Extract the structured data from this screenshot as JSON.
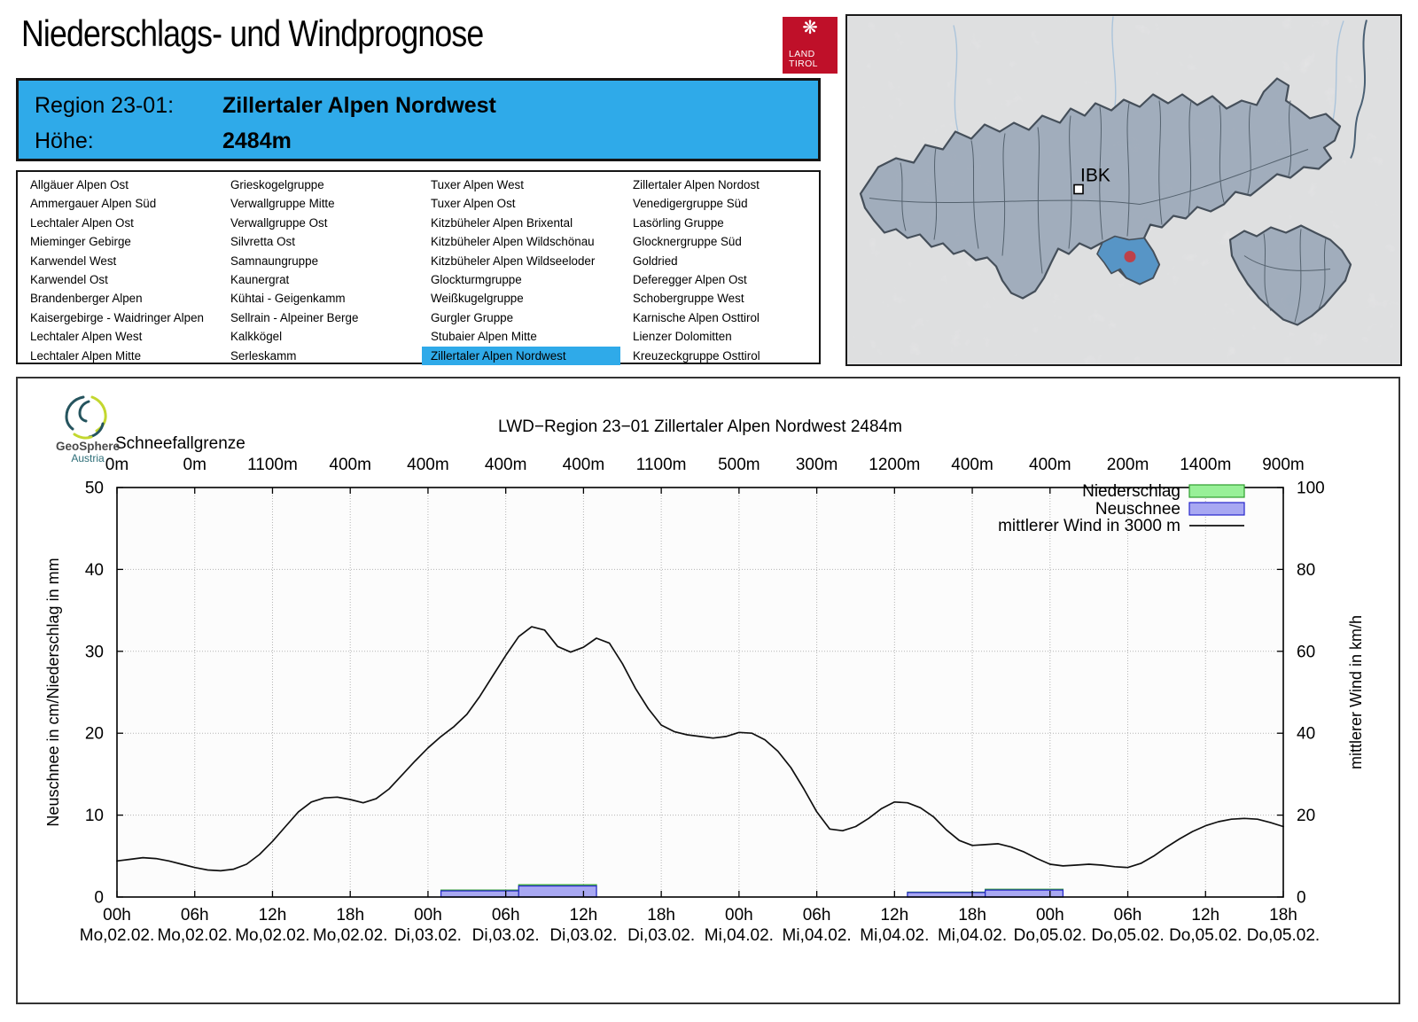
{
  "header": {
    "title": "Niederschlags- und Windprognose",
    "logo": {
      "eagle_glyph": "❋",
      "line1": "LAND",
      "line2": "TIROL"
    }
  },
  "region_info": {
    "region_label": "Region 23-01:",
    "region_name": "Zillertaler Alpen Nordwest",
    "hoehe_label": "Höhe:",
    "hoehe_value": "2484m"
  },
  "region_list": {
    "selected": "Zillertaler Alpen Nordwest",
    "columns": [
      [
        "Allgäuer Alpen Ost",
        "Ammergauer Alpen Süd",
        "Lechtaler Alpen Ost",
        "Mieminger Gebirge",
        "Karwendel West",
        "Karwendel Ost",
        "Brandenberger Alpen",
        "Kaisergebirge - Waidringer Alpen",
        "Lechtaler Alpen West",
        "Lechtaler Alpen Mitte"
      ],
      [
        "Grieskogelgruppe",
        "Verwallgruppe Mitte",
        "Verwallgruppe Ost",
        "Silvretta Ost",
        "Samnaungruppe",
        "Kaunergrat",
        "Kühtai - Geigenkamm",
        "Sellrain - Alpeiner Berge",
        "Kalkkögel",
        "Serleskamm"
      ],
      [
        "Tuxer Alpen West",
        "Tuxer Alpen Ost",
        "Kitzbüheler Alpen Brixental",
        "Kitzbüheler Alpen Wildschönau",
        "Kitzbüheler Alpen Wildseeloder",
        "Glockturmgruppe",
        "Weißkugelgruppe",
        "Gurgler Gruppe",
        "Stubaier Alpen Mitte",
        "Zillertaler Alpen Nordwest"
      ],
      [
        "Zillertaler Alpen Nordost",
        "Venedigergruppe Süd",
        "Lasörling Gruppe",
        "Glocknergruppe Süd",
        "Goldried",
        "Deferegger Alpen Ost",
        "Schobergruppe West",
        "Karnische Alpen Osttirol",
        "Lienzer Dolomitten",
        "Kreuzeckgruppe Osttirol"
      ]
    ]
  },
  "map": {
    "city_label": "IBK",
    "region_fill": "#9dabbc",
    "highlight_color": "#3d8cc9",
    "marker_color": "#c0202a"
  },
  "geosphere": {
    "name": "GeoSphere",
    "country": "Austria"
  },
  "chart_data": {
    "type": "line+bar",
    "title": "LWD−Region 23−01 Zillertaler Alpen Nordwest 2484m",
    "snowline": {
      "label": "Schneefallgrenze",
      "values": [
        "0m",
        "0m",
        "1100m",
        "400m",
        "400m",
        "400m",
        "400m",
        "1100m",
        "500m",
        "300m",
        "1200m",
        "400m",
        "400m",
        "200m",
        "1400m",
        "900m"
      ]
    },
    "ylabel_left": "Neuschnee in cm/Niederschlag in mm",
    "ylabel_right": "mittlerer Wind in km/h",
    "ylim_left": [
      0,
      50
    ],
    "ylim_right": [
      0,
      100
    ],
    "yticks_left": [
      "0",
      "10",
      "20",
      "30",
      "40",
      "50"
    ],
    "yticks_right": [
      "0",
      "20",
      "40",
      "60",
      "80",
      "100"
    ],
    "x_ticks": {
      "hours": [
        "00h",
        "06h",
        "12h",
        "18h",
        "00h",
        "06h",
        "12h",
        "18h",
        "00h",
        "06h",
        "12h",
        "18h",
        "00h",
        "06h",
        "12h",
        "18h"
      ],
      "dates": [
        "Mo,02.02.",
        "Mo,02.02.",
        "Mo,02.02.",
        "Mo,02.02.",
        "Di,03.02.",
        "Di,03.02.",
        "Di,03.02.",
        "Di,03.02.",
        "Mi,04.02.",
        "Mi,04.02.",
        "Mi,04.02.",
        "Mi,04.02.",
        "Do,05.02.",
        "Do,05.02.",
        "Do,05.02.",
        "Do,05.02."
      ]
    },
    "legend": [
      {
        "label": "Niederschlag",
        "type": "box",
        "fill": "#98f098",
        "stroke": "#2e9e2e"
      },
      {
        "label": "Neuschnee",
        "type": "box",
        "fill": "#a8a8f2",
        "stroke": "#2626cc"
      },
      {
        "label": "mittlerer Wind in 3000 m",
        "type": "line",
        "stroke": "#101010"
      }
    ],
    "bars": [
      {
        "from_hour": 25,
        "to_hour": 31,
        "neuschnee_cm": 0.75,
        "niederschlag_mm": 0.85
      },
      {
        "from_hour": 31,
        "to_hour": 37,
        "neuschnee_cm": 1.35,
        "niederschlag_mm": 1.5
      },
      {
        "from_hour": 61,
        "to_hour": 67,
        "neuschnee_cm": 0.55,
        "niederschlag_mm": 0.6
      },
      {
        "from_hour": 67,
        "to_hour": 73,
        "neuschnee_cm": 0.85,
        "niederschlag_mm": 0.95
      }
    ],
    "wind_kmh": [
      8.8,
      9.2,
      9.6,
      9.4,
      8.8,
      8.0,
      7.2,
      6.6,
      6.4,
      6.8,
      8.0,
      10.4,
      13.6,
      17.2,
      20.8,
      23.2,
      24.2,
      24.4,
      23.8,
      23.0,
      24.0,
      26.4,
      29.8,
      33.2,
      36.4,
      39.2,
      41.6,
      44.6,
      49.0,
      54.0,
      59.0,
      63.6,
      66.0,
      65.2,
      61.2,
      59.8,
      61.0,
      63.2,
      62.0,
      57.0,
      51.0,
      46.0,
      42.0,
      40.4,
      39.6,
      39.2,
      38.8,
      39.2,
      40.2,
      40.0,
      38.4,
      35.6,
      31.6,
      26.4,
      20.8,
      16.6,
      16.2,
      17.2,
      19.2,
      21.6,
      23.2,
      23.0,
      21.8,
      19.6,
      16.4,
      13.8,
      12.6,
      12.8,
      13.0,
      12.2,
      11.0,
      9.4,
      8.0,
      7.6,
      7.8,
      8.0,
      7.8,
      7.4,
      7.2,
      8.2,
      10.0,
      12.2,
      14.2,
      16.0,
      17.4,
      18.4,
      19.0,
      19.2,
      19.0,
      18.2,
      17.2
    ]
  }
}
